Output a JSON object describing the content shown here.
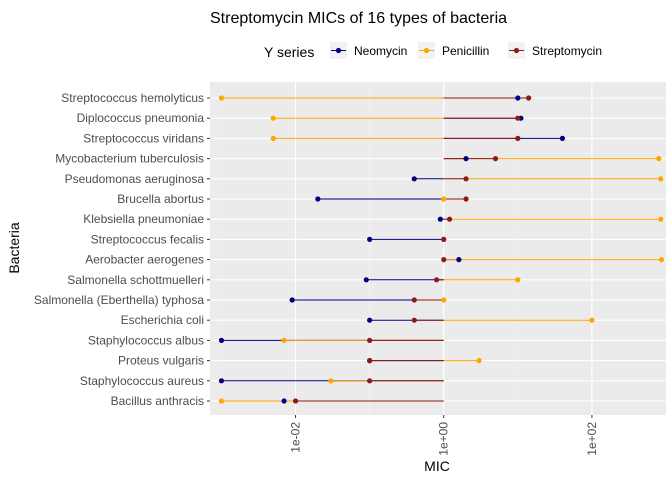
{
  "chart_data": {
    "type": "scatter",
    "title": "Streptomycin MICs of 16 types of bacteria",
    "xlabel": "MIC",
    "ylabel": "Bacteria",
    "x_scale": "log10",
    "xlim": [
      0.0007,
      1000
    ],
    "x_ticks": [
      {
        "value": 0.01,
        "label": "1e-02"
      },
      {
        "value": 1,
        "label": "1e+00"
      },
      {
        "value": 100,
        "label": "1e+02"
      }
    ],
    "grid": true,
    "legend": {
      "title": "Y series",
      "position": "top"
    },
    "categories": [
      "Streptococcus hemolyticus",
      "Diplococcus pneumonia",
      "Streptococcus viridans",
      "Mycobacterium tuberculosis",
      "Pseudomonas aeruginosa",
      "Brucella abortus",
      "Klebsiella pneumoniae",
      "Streptococcus fecalis",
      "Aerobacter aerogenes",
      "Salmonella schottmuelleri",
      "Salmonella (Eberthella) typhosa",
      "Escherichia coli",
      "Staphylococcus albus",
      "Proteus vulgaris",
      "Staphylococcus aureus",
      "Bacillus anthracis"
    ],
    "baseline": 1,
    "series": [
      {
        "name": "Neomycin",
        "color": "#000080",
        "values": [
          10,
          11,
          40,
          2,
          0.4,
          0.02,
          0.9,
          0.1,
          1.6,
          0.09,
          0.009,
          0.1,
          0.001,
          0.1,
          0.001,
          0.007
        ]
      },
      {
        "name": "Penicillin",
        "color": "#FFA500",
        "values": [
          0.001,
          0.005,
          0.005,
          800,
          850,
          1,
          850,
          1,
          870,
          10,
          1,
          100,
          0.007,
          3,
          0.03,
          0.001
        ]
      },
      {
        "name": "Streptomycin",
        "color": "#8B1A1A",
        "values": [
          14,
          10,
          10,
          5,
          2,
          2,
          1.2,
          1,
          1,
          0.8,
          0.4,
          0.4,
          0.1,
          0.1,
          0.1,
          0.01
        ]
      }
    ]
  }
}
